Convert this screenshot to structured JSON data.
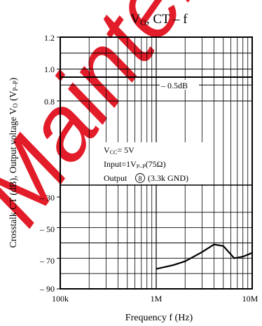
{
  "watermark": {
    "text": "Maintenance/Discontinued",
    "color": "#e0101e"
  },
  "chart_data": {
    "type": "line",
    "title": {
      "main": "V",
      "sub": "O",
      "rest": ",  CT – f"
    },
    "xlabel": "Frequency  f  (Hz)",
    "ylabel": {
      "p1": "Crosstalk  CT  (dB),  Output voltage  V",
      "p1sub": "O",
      "p2": "  (V",
      "p2sub": "P–P",
      "p3": ")"
    },
    "xscale": "log",
    "xlim": [
      100000,
      10000000
    ],
    "x_ticks": [
      {
        "value": 100000,
        "label": "100k"
      },
      {
        "value": 1000000,
        "label": "1M"
      },
      {
        "value": 10000000,
        "label": "10M"
      }
    ],
    "y_ticks": [
      {
        "label": "1.2"
      },
      {
        "label": "1.0"
      },
      {
        "label": "0.8"
      },
      {
        "label": "– 30"
      },
      {
        "label": "– 50"
      },
      {
        "label": "– 70"
      },
      {
        "label": "– 90"
      }
    ],
    "grid": true,
    "annotations": {
      "level": "– 0.5dB",
      "cond_vcc": "V",
      "cond_vcc_sub": "CC",
      "cond_vcc_rest": "= 5V",
      "cond_input": "Input=1V",
      "cond_input_sub": "P–P",
      "cond_input_rest": "(75Ω)",
      "cond_output": "Output",
      "cond_output_pin": "8",
      "cond_output_rest": "(3.3k  GND)"
    },
    "series": [
      {
        "values_db": [
          {
            "x": 1000000,
            "y": -77
          },
          {
            "x": 1500000,
            "y": -74.5
          },
          {
            "x": 2000000,
            "y": -72
          },
          {
            "x": 3000000,
            "y": -66
          },
          {
            "x": 4000000,
            "y": -61
          },
          {
            "x": 5000000,
            "y": -62
          },
          {
            "x": 6500000,
            "y": -70
          },
          {
            "x": 8000000,
            "y": -69
          },
          {
            "x": 10000000,
            "y": -66.5
          }
        ]
      },
      {
        "values_vpp": [
          {
            "x": 100000,
            "y": 0.944
          },
          {
            "x": 10000000,
            "y": 0.944
          }
        ]
      }
    ]
  }
}
